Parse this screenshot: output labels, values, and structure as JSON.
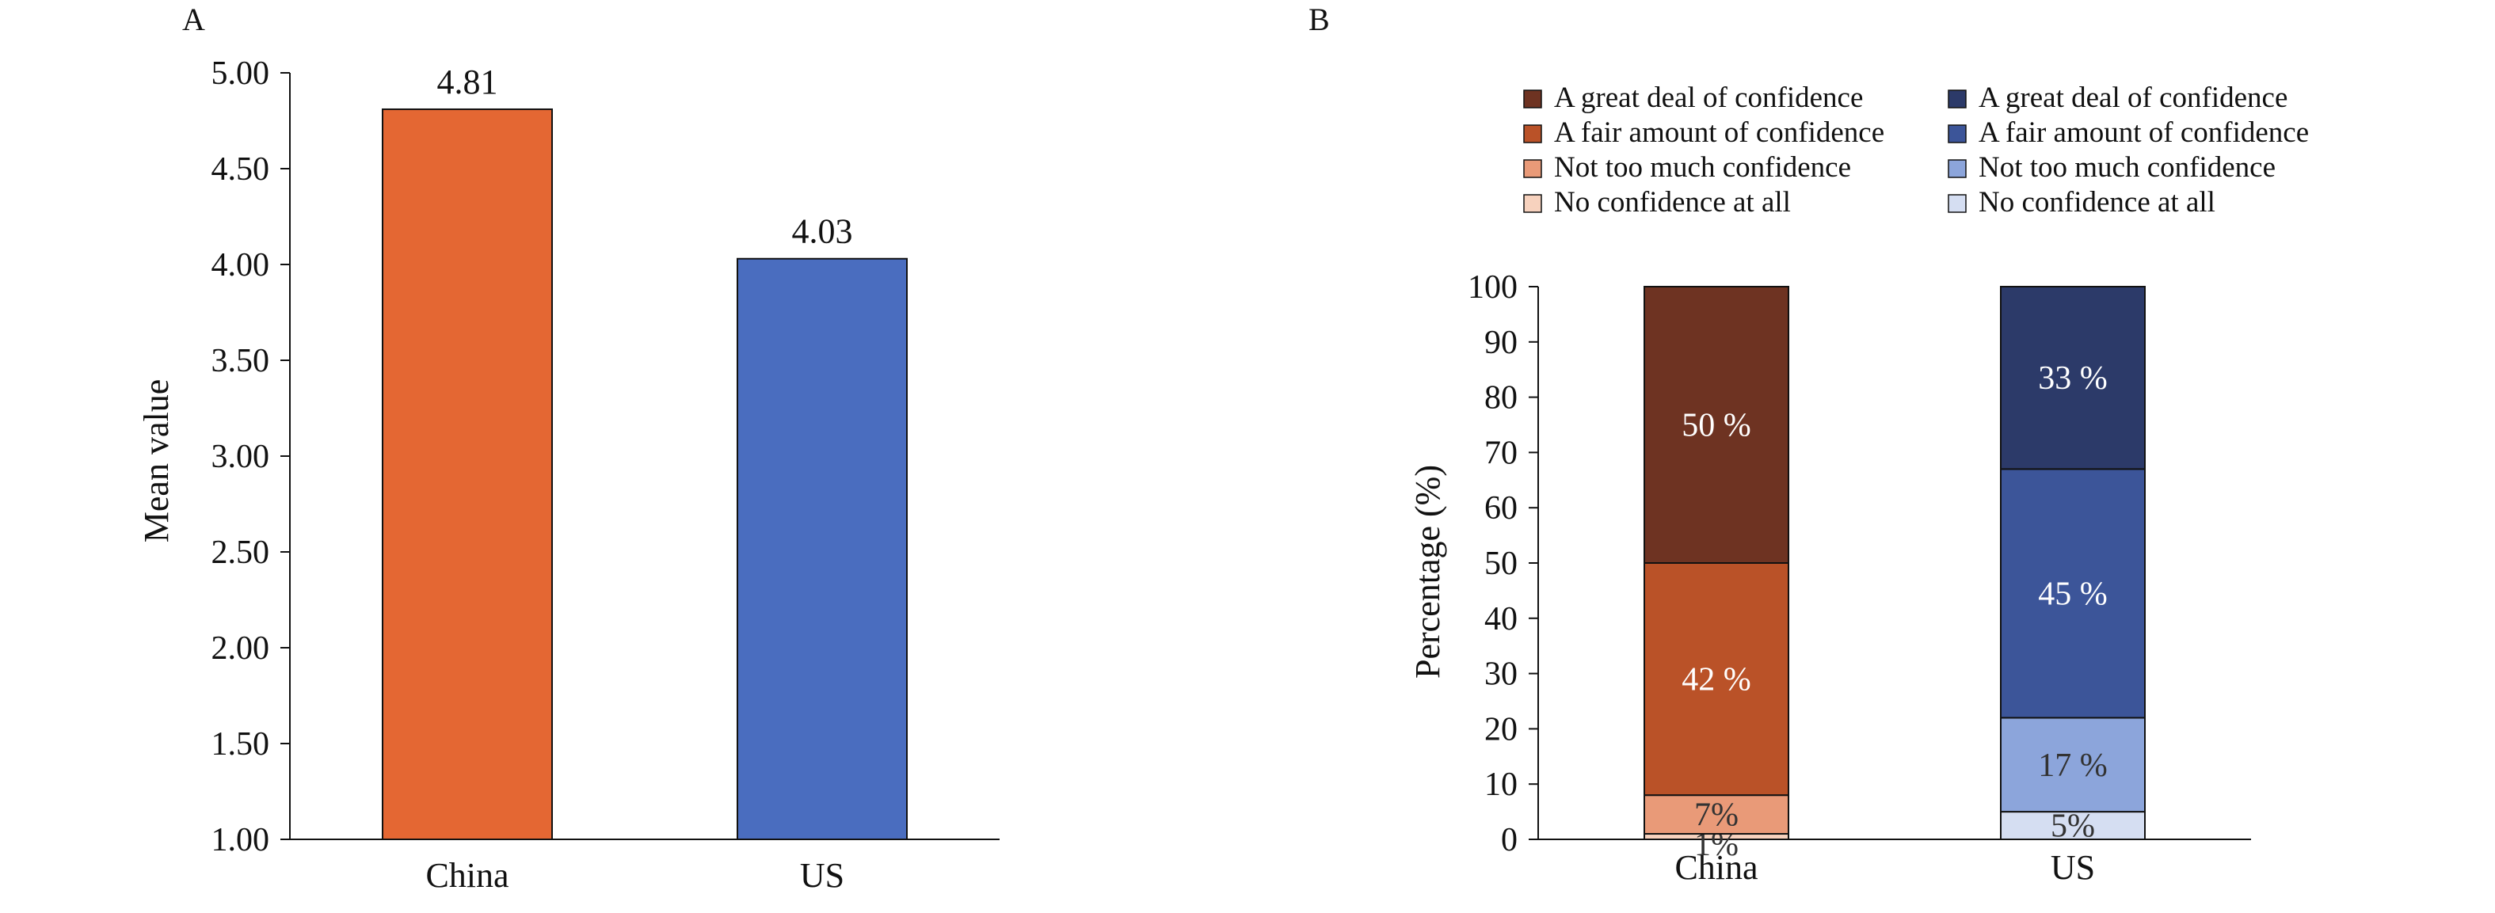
{
  "chart_data": [
    {
      "panel_label": "A",
      "type": "bar",
      "categories": [
        "China",
        "US"
      ],
      "values": [
        4.81,
        4.03
      ],
      "value_labels": [
        "4.81",
        "4.03"
      ],
      "colors": [
        "#E46733",
        "#4A6DBF"
      ],
      "ylabel": "Mean value",
      "ylim": [
        1.0,
        5.0
      ],
      "yticks": [
        "1.00",
        "1.50",
        "2.00",
        "2.50",
        "3.00",
        "3.50",
        "4.00",
        "4.50",
        "5.00"
      ],
      "grid": false
    },
    {
      "panel_label": "B",
      "type": "bar",
      "stacked": true,
      "categories": [
        "China",
        "US"
      ],
      "ylabel": "Percentage (%)",
      "ylim": [
        0,
        100
      ],
      "yticks": [
        "0",
        "10",
        "20",
        "30",
        "40",
        "50",
        "60",
        "70",
        "80",
        "90",
        "100"
      ],
      "grid": false,
      "legend_position": "top",
      "legend": [
        {
          "category": "China",
          "entries": [
            {
              "name": "A great deal of confidence",
              "color": "#6E3322"
            },
            {
              "name": "A fair amount of confidence",
              "color": "#BA5228"
            },
            {
              "name": "Not too much confidence",
              "color": "#E99A78"
            },
            {
              "name": "No confidence at all",
              "color": "#F7D2BE"
            }
          ]
        },
        {
          "category": "US",
          "entries": [
            {
              "name": "A great deal of confidence",
              "color": "#2C3A69"
            },
            {
              "name": "A fair amount of confidence",
              "color": "#3C5599"
            },
            {
              "name": "Not too much confidence",
              "color": "#8CA5DB"
            },
            {
              "name": "No confidence at all",
              "color": "#D5DEF2"
            }
          ]
        }
      ],
      "stacks": [
        {
          "category": "China",
          "segments": [
            {
              "level": "No confidence at all",
              "value": 1,
              "label": "1%",
              "color": "#F7D2BE"
            },
            {
              "level": "Not too much confidence",
              "value": 7,
              "label": "7%",
              "color": "#E99A78"
            },
            {
              "level": "A fair amount of confidence",
              "value": 42,
              "label": "42 %",
              "color": "#BA5228"
            },
            {
              "level": "A great deal of confidence",
              "value": 50,
              "label": "50 %",
              "color": "#6E3322"
            }
          ]
        },
        {
          "category": "US",
          "segments": [
            {
              "level": "No confidence at all",
              "value": 5,
              "label": "5%",
              "color": "#D5DEF2"
            },
            {
              "level": "Not too much confidence",
              "value": 17,
              "label": "17 %",
              "color": "#8CA5DB"
            },
            {
              "level": "A fair amount of confidence",
              "value": 45,
              "label": "45 %",
              "color": "#3C5599"
            },
            {
              "level": "A great deal of confidence",
              "value": 33,
              "label": "33 %",
              "color": "#2C3A69"
            }
          ]
        }
      ]
    }
  ]
}
